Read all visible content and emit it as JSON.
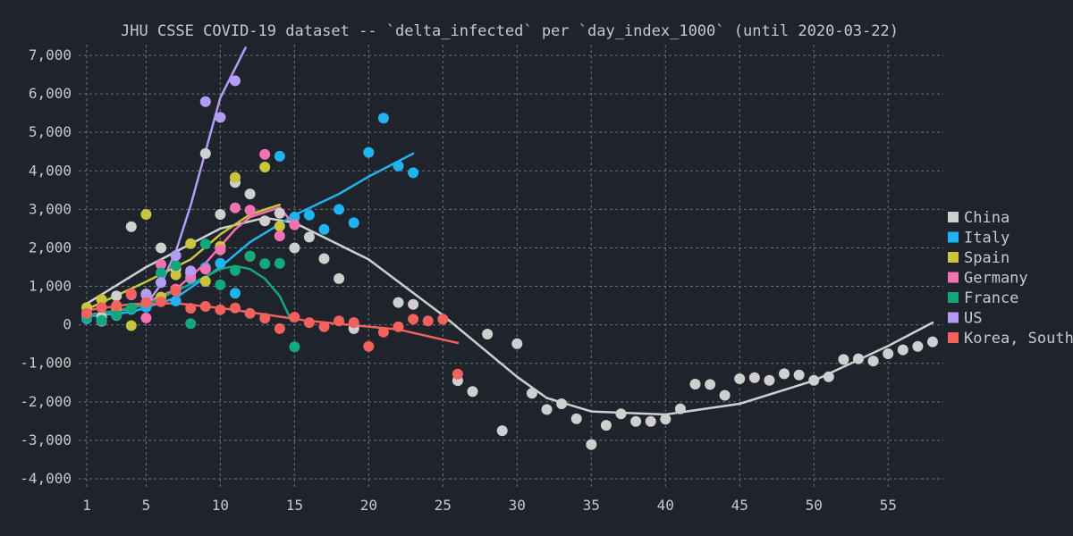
{
  "chart_data": {
    "type": "scatter",
    "title": "JHU CSSE COVID-19 dataset -- `delta_infected` per `day_index_1000` (until 2020-03-22)",
    "xlabel": "",
    "ylabel": "",
    "xlim": [
      1,
      58
    ],
    "ylim": [
      -4000,
      7000
    ],
    "x_ticks": [
      1,
      5,
      10,
      15,
      20,
      25,
      30,
      35,
      40,
      45,
      50,
      55
    ],
    "y_ticks": [
      -4000,
      -3000,
      -2000,
      -1000,
      0,
      1000,
      2000,
      3000,
      4000,
      5000,
      6000,
      7000
    ],
    "y_tick_labels": [
      "-4,000",
      "-3,000",
      "-2,000",
      "-1,000",
      "0",
      "1,000",
      "2,000",
      "3,000",
      "4,000",
      "5,000",
      "6,000",
      "7,000"
    ],
    "grid": true,
    "legend_position": "right",
    "series": [
      {
        "name": "China",
        "color": "#cfcfcf",
        "points": [
          [
            1,
            300
          ],
          [
            2,
            200
          ],
          [
            3,
            750
          ],
          [
            4,
            2550
          ],
          [
            5,
            800
          ],
          [
            6,
            2000
          ],
          [
            7,
            1450
          ],
          [
            8,
            1350
          ],
          [
            9,
            4450
          ],
          [
            10,
            2870
          ],
          [
            11,
            3700
          ],
          [
            12,
            3400
          ],
          [
            13,
            2700
          ],
          [
            14,
            2900
          ],
          [
            15,
            2000
          ],
          [
            16,
            2280
          ],
          [
            17,
            1720
          ],
          [
            18,
            1200
          ],
          [
            19,
            -100
          ],
          [
            22,
            580
          ],
          [
            23,
            530
          ],
          [
            26,
            -1450
          ],
          [
            27,
            -1730
          ],
          [
            28,
            -240
          ],
          [
            29,
            -2750
          ],
          [
            30,
            -490
          ],
          [
            31,
            -1780
          ],
          [
            32,
            -2200
          ],
          [
            33,
            -2050
          ],
          [
            34,
            -2440
          ],
          [
            35,
            -3110
          ],
          [
            36,
            -2610
          ],
          [
            37,
            -2310
          ],
          [
            38,
            -2510
          ],
          [
            39,
            -2510
          ],
          [
            40,
            -2450
          ],
          [
            41,
            -2180
          ],
          [
            42,
            -1540
          ],
          [
            43,
            -1550
          ],
          [
            44,
            -1830
          ],
          [
            45,
            -1400
          ],
          [
            46,
            -1370
          ],
          [
            47,
            -1440
          ],
          [
            48,
            -1270
          ],
          [
            49,
            -1300
          ],
          [
            50,
            -1440
          ],
          [
            51,
            -1350
          ],
          [
            52,
            -900
          ],
          [
            53,
            -880
          ],
          [
            54,
            -940
          ],
          [
            55,
            -750
          ],
          [
            56,
            -650
          ],
          [
            57,
            -560
          ],
          [
            58,
            -440
          ]
        ],
        "fit": [
          [
            1,
            550
          ],
          [
            5,
            1500
          ],
          [
            10,
            2500
          ],
          [
            13,
            2780
          ],
          [
            15,
            2650
          ],
          [
            20,
            1700
          ],
          [
            25,
            250
          ],
          [
            30,
            -1350
          ],
          [
            32,
            -1900
          ],
          [
            35,
            -2250
          ],
          [
            40,
            -2330
          ],
          [
            45,
            -2050
          ],
          [
            50,
            -1450
          ],
          [
            55,
            -550
          ],
          [
            58,
            60
          ]
        ]
      },
      {
        "name": "Italy",
        "color": "#1fb4f0",
        "points": [
          [
            1,
            160
          ],
          [
            2,
            90
          ],
          [
            3,
            240
          ],
          [
            4,
            400
          ],
          [
            5,
            460
          ],
          [
            7,
            620
          ],
          [
            8,
            1200
          ],
          [
            9,
            1490
          ],
          [
            10,
            1600
          ],
          [
            11,
            820
          ],
          [
            14,
            4380
          ],
          [
            15,
            2800
          ],
          [
            16,
            2850
          ],
          [
            17,
            2480
          ],
          [
            18,
            3000
          ],
          [
            19,
            2650
          ],
          [
            20,
            4480
          ],
          [
            21,
            5370
          ],
          [
            22,
            4130
          ],
          [
            23,
            3950
          ]
        ],
        "fit": [
          [
            1,
            220
          ],
          [
            4,
            330
          ],
          [
            7,
            700
          ],
          [
            10,
            1500
          ],
          [
            12,
            2150
          ],
          [
            15,
            2850
          ],
          [
            18,
            3400
          ],
          [
            20,
            3850
          ],
          [
            23,
            4450
          ]
        ]
      },
      {
        "name": "Spain",
        "color": "#c9c53c",
        "points": [
          [
            1,
            450
          ],
          [
            2,
            660
          ],
          [
            3,
            450
          ],
          [
            4,
            -20
          ],
          [
            5,
            2870
          ],
          [
            6,
            720
          ],
          [
            7,
            1300
          ],
          [
            8,
            2110
          ],
          [
            9,
            1130
          ],
          [
            10,
            2040
          ],
          [
            11,
            3830
          ],
          [
            12,
            1780
          ],
          [
            13,
            4100
          ],
          [
            14,
            2560
          ]
        ],
        "fit": [
          [
            1,
            400
          ],
          [
            5,
            1120
          ],
          [
            8,
            1700
          ],
          [
            10,
            2350
          ],
          [
            12,
            2870
          ],
          [
            14,
            3120
          ]
        ]
      },
      {
        "name": "Germany",
        "color": "#f472b2",
        "points": [
          [
            1,
            220
          ],
          [
            2,
            100
          ],
          [
            3,
            260
          ],
          [
            4,
            780
          ],
          [
            5,
            180
          ],
          [
            6,
            1570
          ],
          [
            7,
            930
          ],
          [
            8,
            1240
          ],
          [
            9,
            1450
          ],
          [
            10,
            1950
          ],
          [
            11,
            3040
          ],
          [
            12,
            2980
          ],
          [
            13,
            4430
          ],
          [
            14,
            2310
          ],
          [
            15,
            2600
          ]
        ],
        "fit": [
          [
            1,
            250
          ],
          [
            4,
            420
          ],
          [
            7,
            920
          ],
          [
            9,
            1600
          ],
          [
            11,
            2480
          ],
          [
            12,
            2800
          ],
          [
            14,
            3050
          ],
          [
            15,
            2580
          ]
        ]
      },
      {
        "name": "France",
        "color": "#13a77c",
        "points": [
          [
            1,
            200
          ],
          [
            2,
            120
          ],
          [
            3,
            260
          ],
          [
            4,
            440
          ],
          [
            6,
            1350
          ],
          [
            7,
            1540
          ],
          [
            8,
            30
          ],
          [
            9,
            2100
          ],
          [
            10,
            1040
          ],
          [
            11,
            1410
          ],
          [
            12,
            1790
          ],
          [
            13,
            1590
          ],
          [
            14,
            1600
          ],
          [
            15,
            -570
          ]
        ],
        "fit": [
          [
            1,
            230
          ],
          [
            5,
            520
          ],
          [
            8,
            1060
          ],
          [
            10,
            1450
          ],
          [
            11,
            1530
          ],
          [
            12,
            1450
          ],
          [
            13,
            1200
          ],
          [
            14,
            750
          ],
          [
            14.8,
            100
          ]
        ]
      },
      {
        "name": "US",
        "color": "#b49cf6",
        "points": [
          [
            5,
            780
          ],
          [
            6,
            1100
          ],
          [
            7,
            1800
          ],
          [
            8,
            1400
          ],
          [
            9,
            5800
          ],
          [
            10,
            5390
          ],
          [
            11,
            6340
          ]
        ],
        "fit": [
          [
            5,
            520
          ],
          [
            6,
            1050
          ],
          [
            7,
            1900
          ],
          [
            8,
            3100
          ],
          [
            9,
            4500
          ],
          [
            10,
            5900
          ],
          [
            11.7,
            7200
          ]
        ]
      },
      {
        "name": "Korea, South",
        "color": "#f2615c",
        "points": [
          [
            1,
            300
          ],
          [
            2,
            450
          ],
          [
            3,
            500
          ],
          [
            4,
            810
          ],
          [
            5,
            580
          ],
          [
            6,
            600
          ],
          [
            7,
            880
          ],
          [
            8,
            430
          ],
          [
            9,
            480
          ],
          [
            10,
            390
          ],
          [
            11,
            440
          ],
          [
            12,
            300
          ],
          [
            13,
            170
          ],
          [
            14,
            -100
          ],
          [
            15,
            200
          ],
          [
            16,
            60
          ],
          [
            17,
            -50
          ],
          [
            18,
            100
          ],
          [
            19,
            60
          ],
          [
            20,
            -560
          ],
          [
            21,
            -190
          ],
          [
            22,
            -50
          ],
          [
            23,
            150
          ],
          [
            24,
            100
          ],
          [
            25,
            150
          ],
          [
            26,
            -1280
          ]
        ],
        "fit": [
          [
            1,
            380
          ],
          [
            4,
            540
          ],
          [
            7,
            560
          ],
          [
            10,
            440
          ],
          [
            13,
            270
          ],
          [
            16,
            100
          ],
          [
            19,
            -10
          ],
          [
            22,
            -120
          ],
          [
            26,
            -470
          ]
        ]
      }
    ]
  }
}
